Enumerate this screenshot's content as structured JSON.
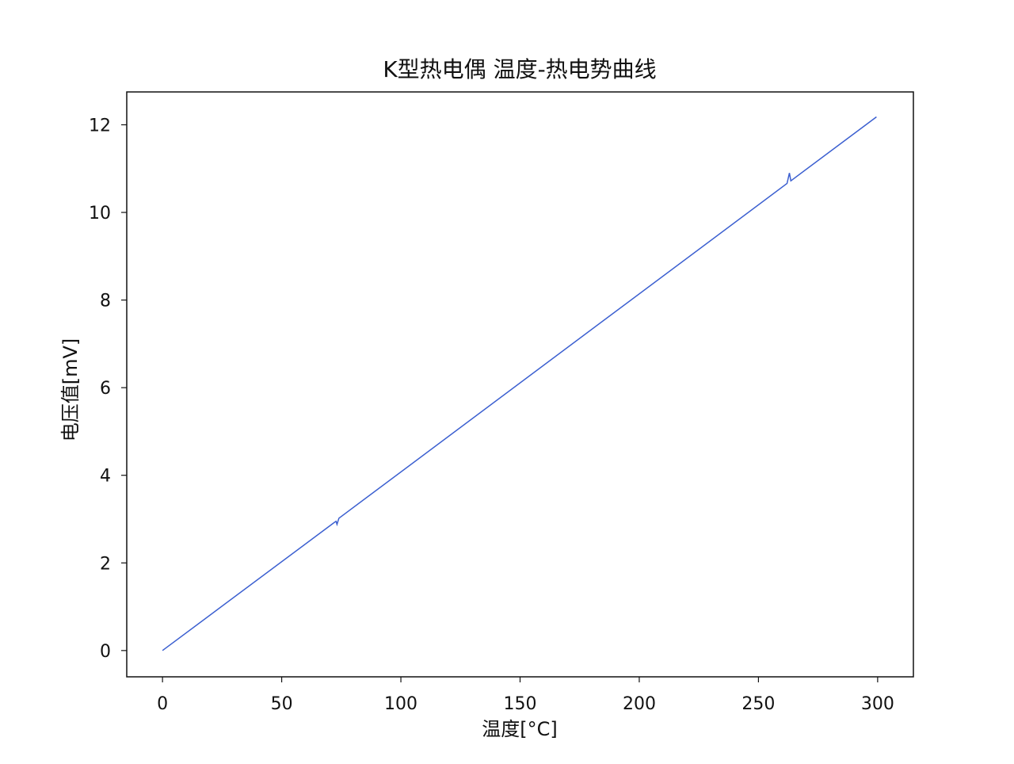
{
  "chart_data": {
    "type": "line",
    "title": "K型热电偶 温度-热电势曲线",
    "xlabel": "温度[°C]",
    "ylabel": "电压值[mV]",
    "xlim": [
      -15,
      315
    ],
    "ylim": [
      -0.6,
      12.75
    ],
    "xticks": [
      0,
      50,
      100,
      150,
      200,
      250,
      300
    ],
    "yticks": [
      0,
      2,
      4,
      6,
      8,
      10,
      12
    ],
    "grid": false,
    "line_color": "#3b5fd0",
    "series": [
      {
        "x": [
          0,
          72,
          72.8,
          73.2,
          74,
          262,
          263,
          263.6,
          299.5
        ],
        "y": [
          0,
          2.92,
          2.95,
          2.88,
          3.02,
          10.66,
          10.9,
          10.72,
          12.18
        ]
      }
    ]
  }
}
